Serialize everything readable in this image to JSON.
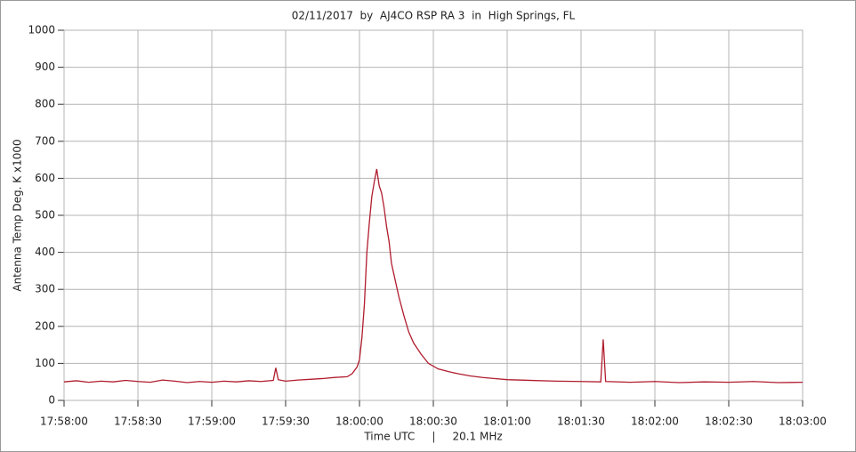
{
  "chart_data": {
    "type": "line",
    "title": "02/11/2017  by  AJ4CO RSP RA 3  in  High Springs, FL",
    "xlabel": "Time UTC     |     20.1 MHz",
    "ylabel": "Antenna Temp Deg. K x1000",
    "color": "#b01c2e",
    "grid": true,
    "ylim": [
      0,
      1000
    ],
    "yticks": [
      0,
      100,
      200,
      300,
      400,
      500,
      600,
      700,
      800,
      900,
      1000
    ],
    "xlim": [
      "17:58:00",
      "18:03:00"
    ],
    "xticks": [
      "17:58:00",
      "17:58:30",
      "17:59:00",
      "17:59:30",
      "18:00:00",
      "18:00:30",
      "18:01:00",
      "18:01:30",
      "18:02:00",
      "18:02:30",
      "18:03:00"
    ],
    "x": [
      "17:58:00",
      "17:58:05",
      "17:58:10",
      "17:58:15",
      "17:58:20",
      "17:58:25",
      "17:58:30",
      "17:58:35",
      "17:58:40",
      "17:58:45",
      "17:58:50",
      "17:58:55",
      "17:59:00",
      "17:59:05",
      "17:59:10",
      "17:59:15",
      "17:59:20",
      "17:59:25",
      "17:59:26",
      "17:59:27",
      "17:59:30",
      "17:59:35",
      "17:59:40",
      "17:59:45",
      "17:59:50",
      "17:59:55",
      "17:59:57",
      "17:59:59",
      "18:00:00",
      "18:00:01",
      "18:00:02",
      "18:00:03",
      "18:00:04",
      "18:00:05",
      "18:00:06",
      "18:00:07",
      "18:00:08",
      "18:00:09",
      "18:00:10",
      "18:00:11",
      "18:00:12",
      "18:00:13",
      "18:00:14",
      "18:00:16",
      "18:00:18",
      "18:00:20",
      "18:00:22",
      "18:00:25",
      "18:00:28",
      "18:00:32",
      "18:00:36",
      "18:00:40",
      "18:00:45",
      "18:00:50",
      "18:00:55",
      "18:01:00",
      "18:01:10",
      "18:01:20",
      "18:01:30",
      "18:01:38",
      "18:01:39",
      "18:01:40",
      "18:01:50",
      "18:02:00",
      "18:02:10",
      "18:02:20",
      "18:02:30",
      "18:02:40",
      "18:02:50",
      "18:03:00"
    ],
    "values": [
      50,
      53,
      49,
      52,
      50,
      54,
      51,
      49,
      55,
      52,
      48,
      51,
      49,
      52,
      50,
      53,
      51,
      54,
      88,
      56,
      52,
      55,
      57,
      59,
      62,
      64,
      72,
      90,
      110,
      170,
      260,
      400,
      480,
      550,
      590,
      625,
      580,
      560,
      520,
      470,
      430,
      370,
      340,
      280,
      230,
      185,
      155,
      125,
      100,
      85,
      78,
      72,
      66,
      62,
      59,
      56,
      54,
      52,
      51,
      50,
      165,
      51,
      49,
      51,
      48,
      50,
      49,
      51,
      48,
      49
    ]
  }
}
